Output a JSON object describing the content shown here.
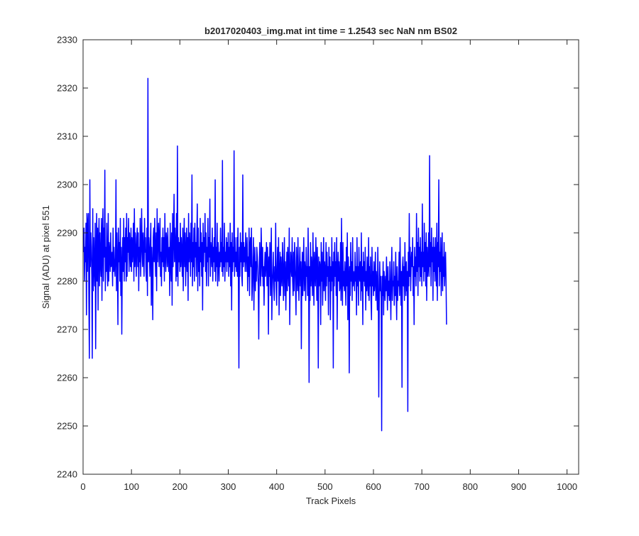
{
  "chart_data": {
    "type": "line",
    "title": "b2017020403_img.mat int time = 1.2543 sec  NaN nm BS02",
    "xlabel": "Track Pixels",
    "ylabel": "Signal (ADU) at pixel 551",
    "xlim": [
      0,
      1024
    ],
    "ylim": [
      2240,
      2330
    ],
    "xticks": [
      "0",
      "100",
      "200",
      "300",
      "400",
      "500",
      "600",
      "700",
      "800",
      "900",
      "1000"
    ],
    "yticks": [
      "2240",
      "2250",
      "2260",
      "2270",
      "2280",
      "2290",
      "2300",
      "2310",
      "2320",
      "2330"
    ],
    "grid": false,
    "line_color": "#0000ff",
    "series": [
      {
        "x_start": 1,
        "x_step": 1,
        "values": [
          2286,
          2291,
          2280,
          2287,
          2284,
          2292,
          2273,
          2294,
          2282,
          2292,
          2294,
          2276,
          2264,
          2301,
          2283,
          2290,
          2287,
          2281,
          2264,
          2295,
          2278,
          2289,
          2283,
          2279,
          2292,
          2266,
          2285,
          2294,
          2280,
          2291,
          2274,
          2288,
          2293,
          2279,
          2290,
          2284,
          2281,
          2293,
          2276,
          2289,
          2295,
          2280,
          2291,
          2285,
          2303,
          2278,
          2287,
          2282,
          2292,
          2283,
          2279,
          2294,
          2280,
          2288,
          2286,
          2282,
          2290,
          2283,
          2284,
          2286,
          2279,
          2291,
          2282,
          2287,
          2283,
          2281,
          2285,
          2301,
          2278,
          2290,
          2284,
          2271,
          2291,
          2284,
          2288,
          2280,
          2293,
          2277,
          2287,
          2269,
          2283,
          2289,
          2282,
          2293,
          2280,
          2289,
          2284,
          2291,
          2280,
          2294,
          2281,
          2289,
          2286,
          2293,
          2282,
          2290,
          2287,
          2283,
          2291,
          2282,
          2289,
          2284,
          2287,
          2292,
          2280,
          2295,
          2283,
          2290,
          2286,
          2281,
          2289,
          2291,
          2283,
          2290,
          2278,
          2287,
          2284,
          2293,
          2281,
          2286,
          2295,
          2287,
          2283,
          2290,
          2285,
          2281,
          2293,
          2286,
          2289,
          2282,
          2280,
          2291,
          2277,
          2322,
          2284,
          2289,
          2286,
          2281,
          2288,
          2292,
          2275,
          2287,
          2283,
          2272,
          2289,
          2291,
          2284,
          2293,
          2286,
          2281,
          2290,
          2278,
          2295,
          2284,
          2289,
          2292,
          2283,
          2288,
          2293,
          2281,
          2286,
          2279,
          2289,
          2284,
          2291,
          2283,
          2289,
          2280,
          2294,
          2286,
          2282,
          2290,
          2288,
          2283,
          2291,
          2285,
          2282,
          2287,
          2277,
          2292,
          2284,
          2280,
          2290,
          2275,
          2294,
          2283,
          2289,
          2298,
          2284,
          2291,
          2287,
          2280,
          2294,
          2281,
          2308,
          2279,
          2289,
          2284,
          2288,
          2282,
          2292,
          2283,
          2289,
          2286,
          2281,
          2291,
          2278,
          2287,
          2293,
          2283,
          2290,
          2279,
          2286,
          2291,
          2282,
          2289,
          2276,
          2294,
          2284,
          2290,
          2287,
          2281,
          2292,
          2284,
          2302,
          2279,
          2288,
          2283,
          2291,
          2280,
          2292,
          2285,
          2288,
          2281,
          2289,
          2296,
          2278,
          2291,
          2282,
          2287,
          2279,
          2293,
          2284,
          2290,
          2281,
          2288,
          2274,
          2292,
          2283,
          2289,
          2286,
          2294,
          2282,
          2290,
          2279,
          2287,
          2284,
          2293,
          2279,
          2289,
          2285,
          2297,
          2281,
          2288,
          2286,
          2283,
          2291,
          2280,
          2287,
          2284,
          2289,
          2282,
          2301,
          2280,
          2287,
          2283,
          2292,
          2279,
          2288,
          2285,
          2280,
          2286,
          2283,
          2291,
          2284,
          2288,
          2282,
          2305,
          2281,
          2287,
          2283,
          2292,
          2280,
          2286,
          2284,
          2289,
          2282,
          2288,
          2284,
          2290,
          2281,
          2287,
          2283,
          2292,
          2279,
          2288,
          2274,
          2290,
          2282,
          2287,
          2284,
          2307,
          2281,
          2289,
          2283,
          2286,
          2282,
          2289,
          2281,
          2291,
          2280,
          2262,
          2287,
          2281,
          2290,
          2284,
          2288,
          2281,
          2279,
          2302,
          2283,
          2288,
          2284,
          2287,
          2282,
          2290,
          2286,
          2282,
          2289,
          2278,
          2285,
          2281,
          2291,
          2277,
          2287,
          2289,
          2283,
          2291,
          2276,
          2279,
          2284,
          2289,
          2274,
          2283,
          2287,
          2278,
          2284,
          2280,
          2287,
          2285,
          2282,
          2279,
          2268,
          2283,
          2288,
          2282,
          2279,
          2291,
          2285,
          2281,
          2287,
          2279,
          2283,
          2275,
          2283,
          2286,
          2281,
          2284,
          2288,
          2279,
          2287,
          2283,
          2269,
          2285,
          2281,
          2288,
          2277,
          2283,
          2291,
          2272,
          2279,
          2282,
          2286,
          2279,
          2276,
          2283,
          2280,
          2292,
          2279,
          2275,
          2283,
          2287,
          2280,
          2289,
          2273,
          2281,
          2286,
          2277,
          2285,
          2281,
          2279,
          2288,
          2283,
          2276,
          2283,
          2289,
          2277,
          2284,
          2274,
          2281,
          2286,
          2278,
          2287,
          2282,
          2279,
          2291,
          2271,
          2280,
          2286,
          2283,
          2281,
          2289,
          2280,
          2277,
          2286,
          2278,
          2288,
          2284,
          2279,
          2273,
          2287,
          2282,
          2278,
          2289,
          2281,
          2276,
          2283,
          2287,
          2279,
          2284,
          2266,
          2281,
          2286,
          2277,
          2283,
          2289,
          2278,
          2284,
          2282,
          2276,
          2287,
          2281,
          2283,
          2277,
          2291,
          2282,
          2259,
          2283,
          2276,
          2288,
          2279,
          2285,
          2282,
          2277,
          2290,
          2281,
          2275,
          2286,
          2282,
          2279,
          2289,
          2283,
          2276,
          2287,
          2281,
          2262,
          2285,
          2279,
          2284,
          2283,
          2271,
          2288,
          2280,
          2286,
          2275,
          2281,
          2289,
          2278,
          2284,
          2282,
          2276,
          2288,
          2279,
          2286,
          2281,
          2283,
          2273,
          2287,
          2280,
          2285,
          2272,
          2283,
          2278,
          2289,
          2280,
          2284,
          2262,
          2286,
          2279,
          2288,
          2281,
          2284,
          2277,
          2289,
          2270,
          2282,
          2286,
          2280,
          2284,
          2278,
          2279,
          2288,
          2276,
          2293,
          2281,
          2275,
          2288,
          2279,
          2282,
          2278,
          2284,
          2280,
          2275,
          2287,
          2279,
          2290,
          2272,
          2285,
          2281,
          2261,
          2283,
          2277,
          2288,
          2280,
          2284,
          2276,
          2289,
          2279,
          2282,
          2281,
          2278,
          2286,
          2280,
          2283,
          2273,
          2289,
          2279,
          2283,
          2275,
          2287,
          2281,
          2280,
          2284,
          2276,
          2290,
          2278,
          2283,
          2271,
          2286,
          2280,
          2284,
          2279,
          2287,
          2274,
          2282,
          2278,
          2285,
          2280,
          2277,
          2289,
          2276,
          2283,
          2279,
          2285,
          2276,
          2272,
          2287,
          2279,
          2282,
          2277,
          2284,
          2278,
          2280,
          2286,
          2276,
          2282,
          2279,
          2274,
          2287,
          2280,
          2256,
          2275,
          2284,
          2278,
          2281,
          2276,
          2249,
          2281,
          2277,
          2284,
          2273,
          2282,
          2279,
          2276,
          2281,
          2278,
          2285,
          2279,
          2274,
          2283,
          2277,
          2280,
          2276,
          2284,
          2278,
          2272,
          2282,
          2287,
          2276,
          2280,
          2279,
          2284,
          2275,
          2281,
          2277,
          2286,
          2278,
          2272,
          2283,
          2276,
          2280,
          2279,
          2286,
          2277,
          2289,
          2281,
          2275,
          2282,
          2258,
          2283,
          2285,
          2279,
          2283,
          2276,
          2288,
          2281,
          2277,
          2284,
          2278,
          2282,
          2253,
          2286,
          2279,
          2294,
          2281,
          2287,
          2278,
          2284,
          2286,
          2283,
          2289,
          2277,
          2283,
          2271,
          2287,
          2281,
          2285,
          2279,
          2294,
          2282,
          2288,
          2277,
          2291,
          2283,
          2287,
          2280,
          2289,
          2281,
          2286,
          2279,
          2296,
          2283,
          2286,
          2280,
          2292,
          2282,
          2288,
          2279,
          2290,
          2276,
          2287,
          2281,
          2283,
          2290,
          2281,
          2306,
          2283,
          2288,
          2279,
          2291,
          2284,
          2287,
          2276,
          2289,
          2282,
          2287,
          2280,
          2289,
          2284,
          2279,
          2292,
          2276,
          2288,
          2283,
          2301,
          2279,
          2286,
          2282,
          2289,
          2277,
          2284,
          2290,
          2278,
          2285,
          2281,
          2288,
          2279,
          2283,
          2286,
          2280,
          2271
        ]
      }
    ]
  }
}
